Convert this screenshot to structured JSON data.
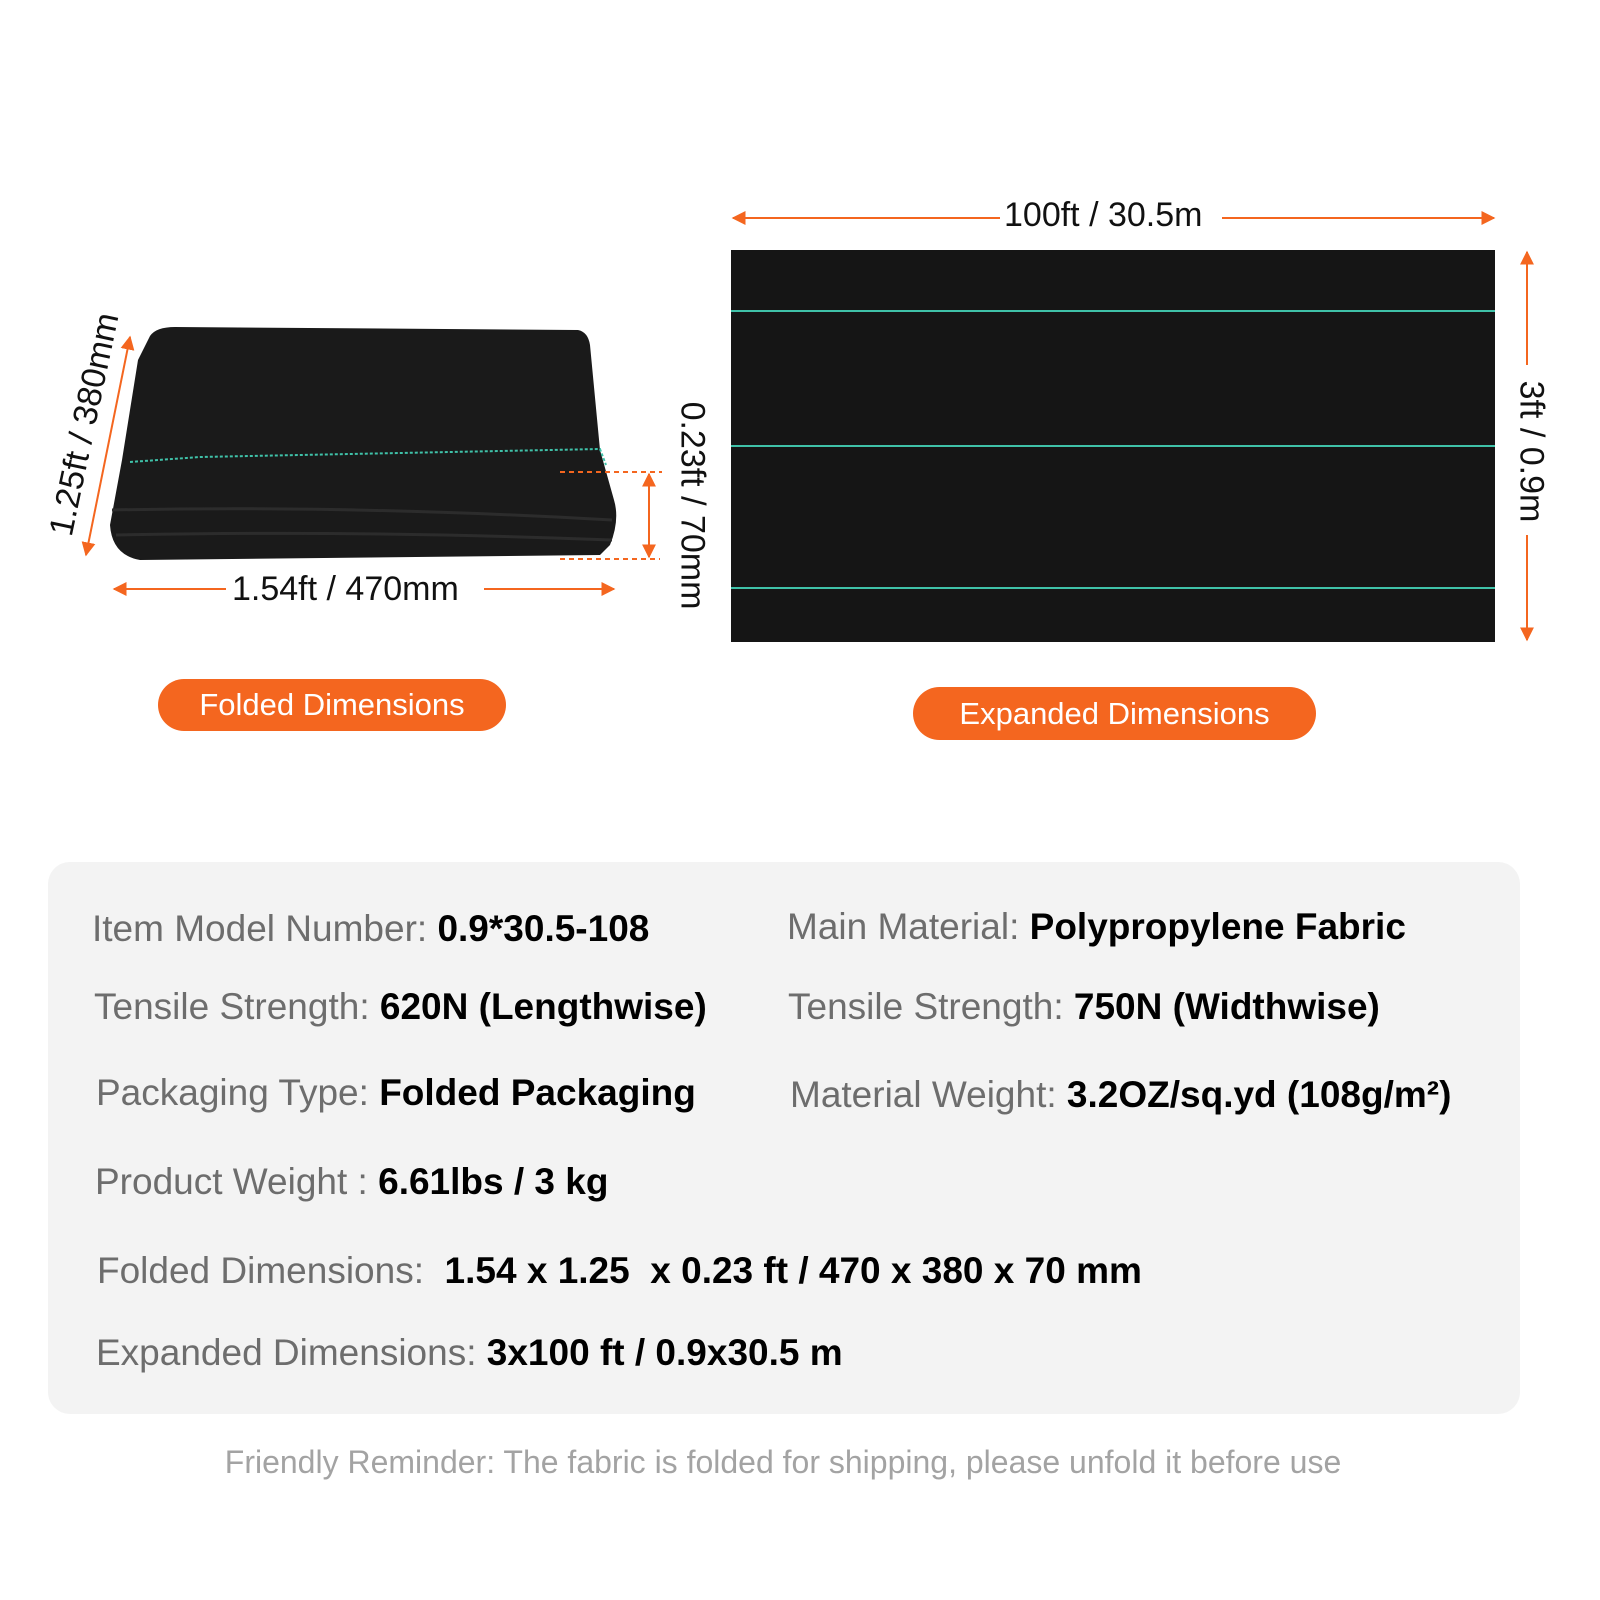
{
  "folded": {
    "height_label": "1.25ft / 380mm",
    "width_label": "1.54ft / 470mm",
    "thickness_label": "0.23ft / 70mm",
    "badge": "Folded Dimensions"
  },
  "expanded": {
    "length_label": "100ft / 30.5m",
    "width_label": "3ft / 0.9m",
    "badge": "Expanded Dimensions"
  },
  "colors": {
    "accent": "#f4661f",
    "fabric": "#151515",
    "stripe": "#3fc1a8",
    "panel": "#f3f3f3"
  },
  "specs": [
    {
      "label": "Item Model Number: ",
      "value": "0.9*30.5-108"
    },
    {
      "label": "Main Material: ",
      "value": "Polypropylene Fabric"
    },
    {
      "label": "Tensile Strength: ",
      "value": "620N (Lengthwise)"
    },
    {
      "label": "Tensile Strength: ",
      "value": "750N (Widthwise)"
    },
    {
      "label": "Packaging Type: ",
      "value": "Folded Packaging"
    },
    {
      "label": "Material Weight: ",
      "value": "3.2OZ/sq.yd (108g/m²)"
    },
    {
      "label": "Product Weight : ",
      "value": "6.61lbs / 3 kg"
    },
    {
      "label": "Folded Dimensions:  ",
      "value": "1.54 x 1.25  x 0.23 ft / 470 x 380 x 70 mm"
    },
    {
      "label": "Expanded Dimensions: ",
      "value": "3x100 ft / 0.9x30.5 m"
    }
  ],
  "reminder": "Friendly Reminder: The fabric is folded for shipping, please unfold it before use"
}
